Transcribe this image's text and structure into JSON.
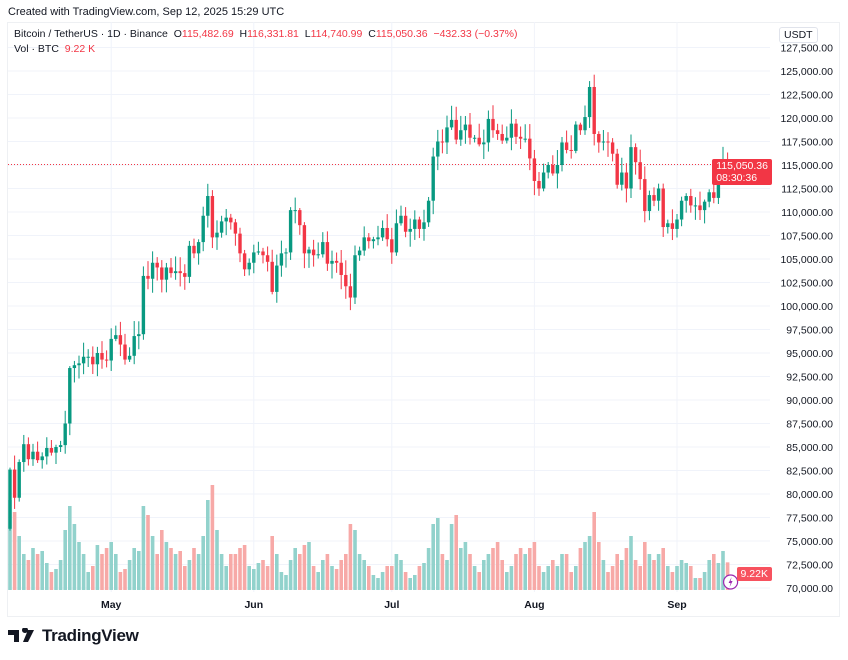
{
  "header": {
    "created": "Created with TradingView.com, Sep 12, 2025 15:29 UTC"
  },
  "legend": {
    "symbol": "Bitcoin / TetherUS · 1D · Binance",
    "o_label": "O",
    "open": "115,482.69",
    "h_label": "H",
    "high": "116,331.81",
    "l_label": "L",
    "low": "114,740.99",
    "c_label": "C",
    "close": "115,050.36",
    "change": "−432.33 (−0.37%)",
    "vol_label": "Vol · BTC",
    "vol_value": "9.22 K"
  },
  "currency": "USDT",
  "price_tag": {
    "price": "115,050.36",
    "countdown": "08:30:36"
  },
  "volume_tag": "9.22K",
  "brand": "TradingView",
  "colors": {
    "up": "#089981",
    "down": "#f23645",
    "vol_up": "#92d2cc",
    "vol_down": "#f7a9a7"
  },
  "chart_data": {
    "type": "candlestick",
    "interval": "1D",
    "start_date": "2025-04-09",
    "first_open": 76300,
    "closes": [
      82600,
      79600,
      83400,
      85300,
      83700,
      84500,
      83600,
      84000,
      84900,
      84400,
      85000,
      85200,
      87500,
      93400,
      93700,
      93900,
      94600,
      94600,
      93800,
      95000,
      94300,
      94200,
      96500,
      96900,
      95900,
      94300,
      94700,
      96800,
      97000,
      103200,
      102900,
      104600,
      104100,
      102800,
      104100,
      103500,
      103700,
      103500,
      103100,
      106400,
      105600,
      106800,
      109600,
      111700,
      107300,
      107800,
      109000,
      109400,
      108900,
      107700,
      105600,
      103900,
      104600,
      105700,
      105800,
      105400,
      104700,
      101500,
      104300,
      105600,
      105700,
      110200,
      110200,
      108600,
      105600,
      106000,
      105400,
      105500,
      106800,
      104500,
      104800,
      104600,
      103300,
      102100,
      100900,
      105400,
      105900,
      107300,
      106900,
      107100,
      107300,
      108300,
      107100,
      105700,
      108800,
      109600,
      107900,
      108200,
      109200,
      108200,
      108900,
      111200,
      115900,
      117500,
      117400,
      119000,
      119800,
      117700,
      118700,
      119300,
      117900,
      117900,
      117200,
      117400,
      119900,
      118700,
      118300,
      117600,
      117900,
      119400,
      118000,
      117800,
      117800,
      115700,
      113300,
      112500,
      114200,
      115000,
      114100,
      115000,
      117400,
      116600,
      116500,
      119300,
      118700,
      120100,
      123300,
      118300,
      117400,
      117500,
      117400,
      116200,
      112900,
      114200,
      112500,
      116900,
      115300,
      113500,
      110100,
      111800,
      111200,
      112500,
      108400,
      108800,
      108200,
      109200,
      111200,
      111700,
      110700,
      110700,
      110200,
      111100,
      112100,
      111500,
      113900,
      115482.69,
      115050.36
    ],
    "last_bar": {
      "open": 115482.69,
      "high": 116331.81,
      "low": 114740.99,
      "close": 115050.36
    },
    "volumes_k": [
      30,
      26,
      18,
      12,
      10,
      14,
      12,
      13,
      9,
      6,
      7,
      10,
      20,
      28,
      22,
      16,
      12,
      6,
      8,
      15,
      12,
      14,
      16,
      12,
      6,
      7,
      10,
      14,
      13,
      28,
      25,
      18,
      12,
      20,
      16,
      14,
      12,
      13,
      8,
      10,
      14,
      12,
      18,
      30,
      35,
      20,
      12,
      8,
      12,
      12,
      14,
      15,
      8,
      7,
      9,
      10,
      8,
      18,
      12,
      6,
      5,
      10,
      14,
      12,
      15,
      16,
      8,
      6,
      10,
      12,
      8,
      7,
      10,
      12,
      22,
      20,
      12,
      10,
      8,
      5,
      4,
      6,
      8,
      8,
      12,
      10,
      6,
      4,
      5,
      8,
      9,
      14,
      22,
      24,
      12,
      10,
      22,
      25,
      14,
      16,
      12,
      8,
      6,
      10,
      12,
      14,
      16,
      10,
      6,
      8,
      12,
      14,
      12,
      14,
      16,
      8,
      6,
      8,
      10,
      8,
      12,
      12,
      6,
      8,
      14,
      16,
      18,
      26,
      16,
      10,
      6,
      8,
      12,
      10,
      14,
      18,
      10,
      8,
      16,
      12,
      10,
      12,
      14,
      8,
      6,
      8,
      10,
      9,
      8,
      4,
      4,
      6,
      10,
      12,
      9,
      13,
      9.22
    ],
    "y_ticks": [
      "127,500.00",
      "125,000.00",
      "122,500.00",
      "120,000.00",
      "117,500.00",
      "115,000.00",
      "112,500.00",
      "110,000.00",
      "107,500.00",
      "105,000.00",
      "102,500.00",
      "100,000.00",
      "97,500.00",
      "95,000.00",
      "92,500.00",
      "90,000.00",
      "87,500.00",
      "85,000.00",
      "82,500.00",
      "80,000.00",
      "77,500.00",
      "75,000.00",
      "72,500.00",
      "70,000.00"
    ],
    "x_ticks": [
      {
        "label": "May",
        "day_index": 22
      },
      {
        "label": "Jun",
        "day_index": 53
      },
      {
        "label": "Jul",
        "day_index": 83
      },
      {
        "label": "Aug",
        "day_index": 114
      },
      {
        "label": "Sep",
        "day_index": 145
      }
    ],
    "ylim": [
      70000,
      127500
    ],
    "grid": true
  }
}
